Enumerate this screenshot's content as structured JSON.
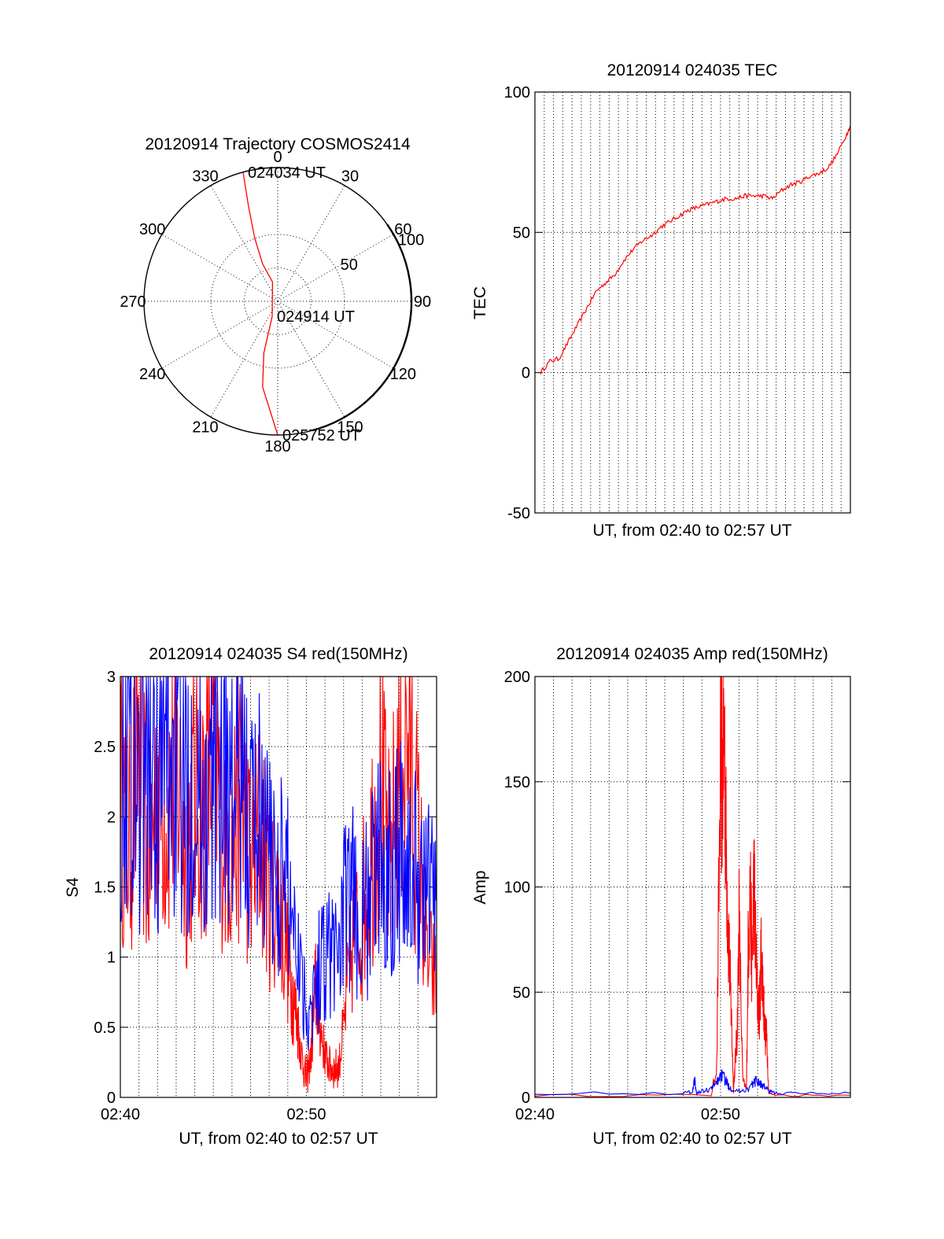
{
  "chart_data": [
    {
      "type": "polar",
      "title": "20120914 Trajectory COSMOS2414",
      "azimuth_labels": [
        "0",
        "30",
        "60",
        "90",
        "120",
        "150",
        "180",
        "210",
        "240",
        "270",
        "300",
        "330"
      ],
      "radial_labels": [
        "50",
        "100"
      ],
      "radial_label_values": [
        50,
        100
      ],
      "rlim": [
        0,
        100
      ],
      "radial_scale_note": "",
      "trajectory": {
        "color": "#ff0000",
        "points": [
          [
            345,
            100
          ],
          [
            343,
            75
          ],
          [
            340,
            50
          ],
          [
            338,
            30
          ],
          [
            345,
            15
          ],
          [
            200,
            12
          ],
          [
            195,
            40
          ],
          [
            190,
            65
          ],
          [
            180,
            100
          ]
        ],
        "labels": [
          {
            "text": "024034 UT",
            "az": 345,
            "r": 100
          },
          {
            "text": "024914 UT",
            "az": 200,
            "r": 12
          },
          {
            "text": "025752 UT",
            "az": 180,
            "r": 100
          }
        ]
      }
    },
    {
      "type": "line",
      "title": "20120914 024035 TEC",
      "xlabel": "UT, from 02:40 to 02:57 UT",
      "ylabel": "TEC",
      "xlim": [
        0,
        17
      ],
      "ylim": [
        -50,
        100
      ],
      "yticks": [
        -50,
        0,
        50,
        100
      ],
      "xgrid_step": 0.5,
      "grid": true,
      "series": [
        {
          "color": "#ff0000",
          "x": [
            0.3,
            0.8,
            1.3,
            1.8,
            2.3,
            2.8,
            3.3,
            3.8,
            4.3,
            4.8,
            5.3,
            5.8,
            6.3,
            6.8,
            7.3,
            7.8,
            8.3,
            8.8,
            9.3,
            9.8,
            10.3,
            10.8,
            11.3,
            11.8,
            12.3,
            12.8,
            13.3,
            13.8,
            14.3,
            14.8,
            15.3,
            15.8,
            16.3,
            16.8,
            17.0
          ],
          "y": [
            0,
            4,
            5,
            11,
            17,
            23,
            29,
            32,
            35,
            40,
            44,
            47,
            49,
            52,
            54,
            56,
            58,
            59,
            60,
            61,
            62,
            62,
            63,
            63,
            63,
            62,
            65,
            67,
            68,
            70,
            71,
            73,
            78,
            85,
            88
          ]
        }
      ]
    },
    {
      "type": "line",
      "title": "20120914 024035 S4 red(150MHz)",
      "xlabel": "UT, from 02:40 to 02:57 UT",
      "ylabel": "S4",
      "xlim": [
        0,
        17
      ],
      "ylim": [
        0,
        3
      ],
      "yticks": [
        0,
        0.5,
        1,
        1.5,
        2,
        2.5,
        3
      ],
      "ytick_labels": [
        "0",
        "0.5",
        "1",
        "1.5",
        "2",
        "2.5",
        "3"
      ],
      "xticks": [
        0,
        10
      ],
      "xtick_labels": [
        "02:40",
        "02:50"
      ],
      "grid": true,
      "series": [
        {
          "color": "#ff0000",
          "x": [
            0,
            0.5,
            1,
            1.5,
            2,
            2.5,
            3,
            3.5,
            4,
            4.5,
            5,
            5.5,
            6,
            6.5,
            7,
            7.5,
            8,
            8.5,
            9,
            9.25,
            9.5,
            9.75,
            10,
            10.25,
            10.5,
            10.75,
            11,
            11.25,
            11.5,
            11.75,
            12,
            12.5,
            13,
            13.5,
            14,
            14.5,
            15,
            15.5,
            16,
            16.5,
            17
          ],
          "y": [
            2.2,
            1.8,
            2.6,
            1.6,
            2.3,
            2.0,
            2.4,
            1.7,
            2.2,
            2.1,
            2.5,
            2.0,
            1.8,
            2.2,
            1.6,
            1.9,
            1.5,
            1.4,
            1.0,
            0.75,
            0.55,
            0.3,
            0.12,
            0.3,
            0.8,
            0.5,
            0.3,
            0.22,
            0.2,
            0.22,
            0.5,
            1.1,
            1.3,
            1.8,
            2.2,
            1.6,
            2.4,
            2.6,
            1.8,
            1.0,
            0.8
          ]
        },
        {
          "color": "#0000ff",
          "x": [
            0,
            0.5,
            1,
            1.5,
            2,
            2.5,
            3,
            3.5,
            4,
            4.5,
            5,
            5.5,
            6,
            6.5,
            7,
            7.5,
            8,
            8.5,
            9,
            9.5,
            10,
            10.5,
            11,
            11.5,
            12,
            12.5,
            13,
            13.5,
            14,
            14.5,
            15,
            15.5,
            16,
            16.5,
            17
          ],
          "y": [
            2.3,
            2.6,
            2.2,
            2.5,
            2.1,
            2.6,
            2.3,
            2.2,
            2.4,
            2.0,
            2.3,
            2.5,
            2.1,
            2.2,
            1.9,
            2.1,
            1.7,
            1.6,
            1.5,
            1.2,
            0.6,
            0.8,
            1.1,
            1.0,
            1.3,
            1.4,
            1.2,
            1.5,
            1.7,
            1.6,
            1.9,
            1.5,
            1.6,
            1.5,
            1.4
          ]
        }
      ]
    },
    {
      "type": "line",
      "title": "20120914 024035 Amp red(150MHz)",
      "xlabel": "UT, from 02:40 to 02:57 UT",
      "ylabel": "Amp",
      "xlim": [
        0,
        17
      ],
      "ylim": [
        0,
        200
      ],
      "yticks": [
        0,
        50,
        100,
        150,
        200
      ],
      "xticks": [
        0,
        10
      ],
      "xtick_labels": [
        "02:40",
        "02:50"
      ],
      "grid": true,
      "series": [
        {
          "color": "#ff0000",
          "x": [
            0,
            9.5,
            9.8,
            10.0,
            10.1,
            10.2,
            10.3,
            10.4,
            10.5,
            10.6,
            10.7,
            10.8,
            10.9,
            11.0,
            11.2,
            11.4,
            11.5,
            11.6,
            11.7,
            11.8,
            11.9,
            12.0,
            12.1,
            12.2,
            12.3,
            12.4,
            12.5,
            12.6,
            13.0,
            17.0
          ],
          "y": [
            1,
            1,
            15,
            160,
            150,
            178,
            120,
            85,
            60,
            35,
            3,
            18,
            30,
            85,
            8,
            4,
            75,
            100,
            60,
            105,
            70,
            45,
            40,
            72,
            50,
            30,
            28,
            2,
            1,
            1
          ]
        },
        {
          "color": "#0000ff",
          "x": [
            0,
            8.0,
            8.5,
            8.6,
            8.7,
            9.0,
            9.5,
            9.8,
            10.0,
            10.2,
            10.4,
            10.6,
            11.0,
            11.5,
            11.8,
            12.0,
            12.2,
            12.4,
            12.6,
            13.0,
            14.0,
            17.0
          ],
          "y": [
            2,
            2,
            3,
            9,
            2,
            3,
            4,
            7,
            11,
            9,
            6,
            4,
            3,
            4,
            7,
            8,
            6,
            5,
            3,
            2,
            2,
            2
          ]
        }
      ]
    }
  ]
}
